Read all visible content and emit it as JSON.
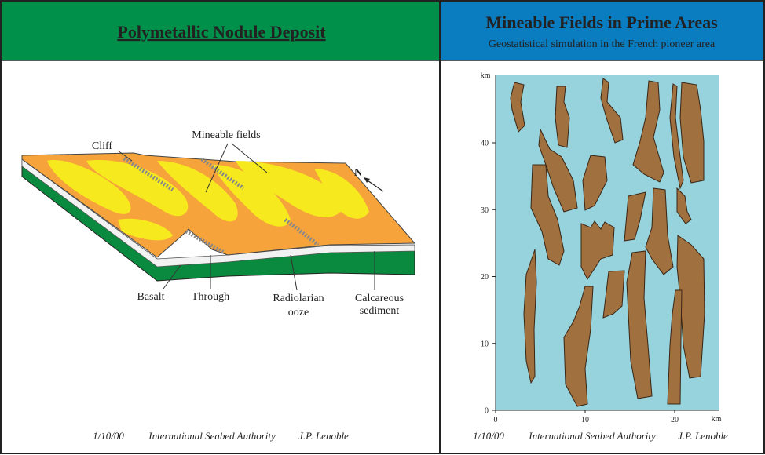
{
  "left_panel": {
    "title": "Polymetallic Nodule Deposit",
    "labels": {
      "cliff": "Cliff",
      "mineable_fields": "Mineable fields",
      "north": "N",
      "basalt": "Basalt",
      "through": "Through",
      "radiolarian_ooze": [
        "Radiolarian",
        "ooze"
      ],
      "calcareous_sediment": [
        "Calcareous",
        "sediment"
      ]
    },
    "footer": [
      "1/10/00",
      "International Seabed Authority",
      "J.P. Lenoble"
    ]
  },
  "right_panel": {
    "title": "Mineable Fields in Prime Areas",
    "subtitle": "Geostatistical simulation in the French pioneer area",
    "map": {
      "y_unit": "km",
      "x_unit": "km",
      "yticks": [
        0,
        10,
        20,
        30,
        40
      ],
      "xticks": [
        0,
        10,
        20
      ]
    },
    "footer": [
      "1/10/00",
      "International Seabed Authority",
      "J.P. Lenoble"
    ]
  }
}
